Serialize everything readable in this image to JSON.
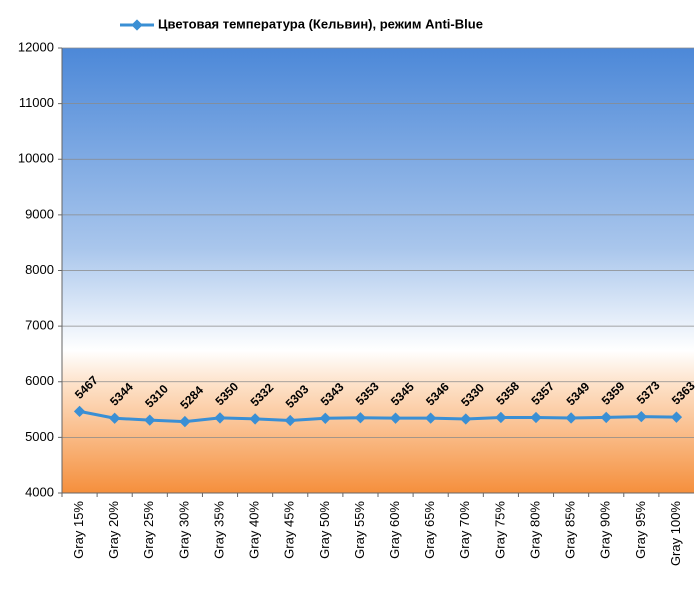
{
  "chart_data": {
    "type": "line",
    "categories": [
      "Gray 15%",
      "Gray 20%",
      "Gray 25%",
      "Gray 30%",
      "Gray 35%",
      "Gray 40%",
      "Gray 45%",
      "Gray 50%",
      "Gray 55%",
      "Gray 60%",
      "Gray 65%",
      "Gray 70%",
      "Gray 75%",
      "Gray 80%",
      "Gray 85%",
      "Gray 90%",
      "Gray 95%",
      "Gray 100%"
    ],
    "series": [
      {
        "name": "Цветовая температура (Кельвин), режим Anti-Blue",
        "color": "#3a8fd4",
        "values": [
          5467,
          5344,
          5310,
          5284,
          5350,
          5332,
          5303,
          5343,
          5353,
          5345,
          5346,
          5330,
          5358,
          5357,
          5349,
          5359,
          5373,
          5363
        ]
      }
    ],
    "ylim": [
      4000,
      12000
    ],
    "yticks": [
      4000,
      5000,
      6000,
      7000,
      8000,
      9000,
      10000,
      11000,
      12000
    ],
    "grid": true,
    "legend": "top"
  }
}
